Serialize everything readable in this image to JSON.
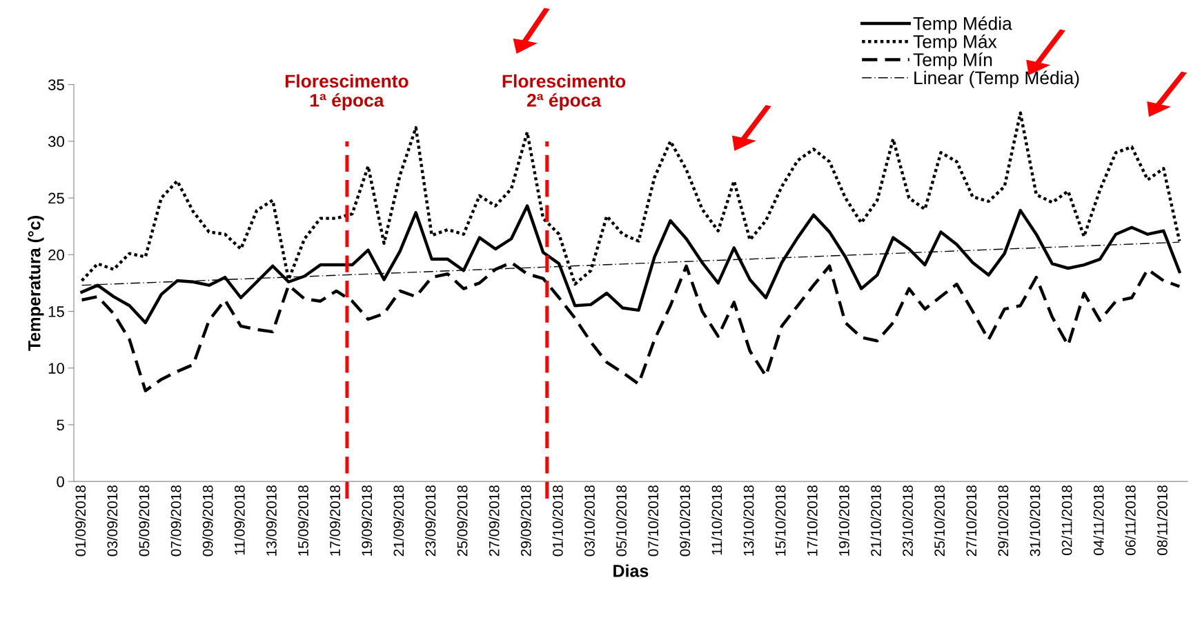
{
  "chart_data": {
    "type": "line",
    "xlabel": "Dias",
    "ylabel": "Temperatura (°c)",
    "categories": [
      "01/09/2018",
      null,
      "03/09/2018",
      null,
      "05/09/2018",
      null,
      "07/09/2018",
      null,
      "09/09/2018",
      null,
      "11/09/2018",
      null,
      "13/09/2018",
      null,
      "15/09/2018",
      null,
      "17/09/2018",
      null,
      "19/09/2018",
      null,
      "21/09/2018",
      null,
      "23/09/2018",
      null,
      "25/09/2018",
      null,
      "27/09/2018",
      null,
      "29/09/2018",
      null,
      "01/10/2018",
      null,
      "03/10/2018",
      null,
      "05/10/2018",
      null,
      "07/10/2018",
      null,
      "09/10/2018",
      null,
      "11/10/2018",
      null,
      "13/10/2018",
      null,
      "15/10/2018",
      null,
      "17/10/2018",
      null,
      "19/10/2018",
      null,
      "21/10/2018",
      null,
      "23/10/2018",
      null,
      "25/10/2018",
      null,
      "27/10/2018",
      null,
      "29/10/2018",
      null,
      "31/10/2018",
      null,
      "02/11/2018",
      null,
      "04/11/2018",
      null,
      "06/11/2018",
      null,
      "08/11/2018",
      null
    ],
    "series": [
      {
        "name": "Temp Média",
        "color": "#000000",
        "line_style": "solid",
        "values": [
          16.7,
          17.3,
          16.3,
          15.5,
          14.0,
          16.5,
          17.7,
          17.6,
          17.3,
          18.0,
          16.2,
          17.6,
          19.0,
          17.6,
          18.1,
          19.1,
          19.1,
          19.1,
          20.4,
          17.8,
          20.3,
          23.7,
          19.6,
          19.6,
          18.6,
          21.5,
          20.5,
          21.4,
          24.3,
          20.2,
          19.2,
          15.5,
          15.6,
          16.6,
          15.3,
          15.1,
          19.8,
          23.0,
          21.4,
          19.3,
          17.5,
          20.6,
          17.8,
          16.2,
          19.3,
          21.5,
          23.5,
          22.0,
          19.8,
          17.0,
          18.2,
          21.5,
          20.5,
          19.1,
          22.0,
          20.9,
          19.3,
          18.2,
          20.1,
          23.9,
          21.8,
          19.2,
          18.8,
          19.1,
          19.6,
          21.8,
          22.4,
          21.8,
          22.1,
          18.5
        ]
      },
      {
        "name": "Temp Máx",
        "color": "#000000",
        "line_style": "dotted",
        "values": [
          17.7,
          19.2,
          18.7,
          20.1,
          19.8,
          25.0,
          26.5,
          23.8,
          22.0,
          21.8,
          20.5,
          23.9,
          24.8,
          17.8,
          21.4,
          23.2,
          23.2,
          23.6,
          27.8,
          21.0,
          27.0,
          31.2,
          21.7,
          22.2,
          21.8,
          25.2,
          24.3,
          25.8,
          30.8,
          23.2,
          21.8,
          17.4,
          18.6,
          23.4,
          21.8,
          21.2,
          26.8,
          30.0,
          27.5,
          24.0,
          22.1,
          26.5,
          21.3,
          23.0,
          26.0,
          28.3,
          29.3,
          28.2,
          25.0,
          22.8,
          24.8,
          30.2,
          25.0,
          24.0,
          29.0,
          28.2,
          25.1,
          24.7,
          26.0,
          32.5,
          25.3,
          24.6,
          25.6,
          21.6,
          25.7,
          29.0,
          29.5,
          26.6,
          27.6,
          21.2
        ]
      },
      {
        "name": "Temp Mín",
        "color": "#000000",
        "line_style": "dashed",
        "values": [
          16.0,
          16.3,
          14.8,
          12.5,
          8.0,
          9.0,
          9.7,
          10.3,
          14.2,
          16.0,
          13.7,
          13.4,
          13.2,
          17.3,
          16.1,
          15.9,
          16.8,
          15.9,
          14.3,
          14.8,
          16.8,
          16.3,
          18.0,
          18.3,
          17.0,
          17.5,
          18.7,
          19.3,
          18.3,
          17.9,
          16.2,
          14.4,
          12.3,
          10.5,
          9.6,
          8.6,
          12.5,
          15.5,
          19.0,
          15.0,
          12.8,
          15.8,
          11.5,
          9.3,
          13.7,
          15.5,
          17.3,
          19.0,
          14.0,
          12.7,
          12.4,
          14.0,
          17.0,
          15.2,
          16.3,
          17.4,
          15.0,
          12.5,
          15.2,
          15.5,
          18.0,
          14.5,
          12.0,
          16.6,
          14.2,
          15.9,
          16.2,
          18.7,
          17.7,
          17.2
        ]
      },
      {
        "name": "Linear (Temp Média)",
        "color": "#000000",
        "line_style": "dashdot",
        "values": [
          17.3,
          17.36,
          17.41,
          17.47,
          17.52,
          17.58,
          17.63,
          17.69,
          17.74,
          17.8,
          17.85,
          17.91,
          17.96,
          18.02,
          18.07,
          18.13,
          18.18,
          18.24,
          18.29,
          18.35,
          18.4,
          18.46,
          18.51,
          18.57,
          18.62,
          18.68,
          18.73,
          18.79,
          18.84,
          18.9,
          18.95,
          19.01,
          19.06,
          19.12,
          19.17,
          19.23,
          19.28,
          19.34,
          19.39,
          19.45,
          19.5,
          19.56,
          19.61,
          19.67,
          19.72,
          19.78,
          19.83,
          19.89,
          19.94,
          20.0,
          20.05,
          20.11,
          20.16,
          20.22,
          20.27,
          20.33,
          20.38,
          20.44,
          20.49,
          20.55,
          20.6,
          20.66,
          20.71,
          20.77,
          20.82,
          20.88,
          20.93,
          20.99,
          21.04,
          21.1
        ]
      }
    ],
    "annotations": [
      "Florescimento\n1ª época",
      "Florescimento\n2ª época"
    ],
    "ylim": [
      0,
      35
    ],
    "yticks": [
      0,
      5,
      10,
      15,
      20,
      25,
      30,
      35
    ],
    "grid": false,
    "legend": "top right",
    "marker": "none"
  }
}
